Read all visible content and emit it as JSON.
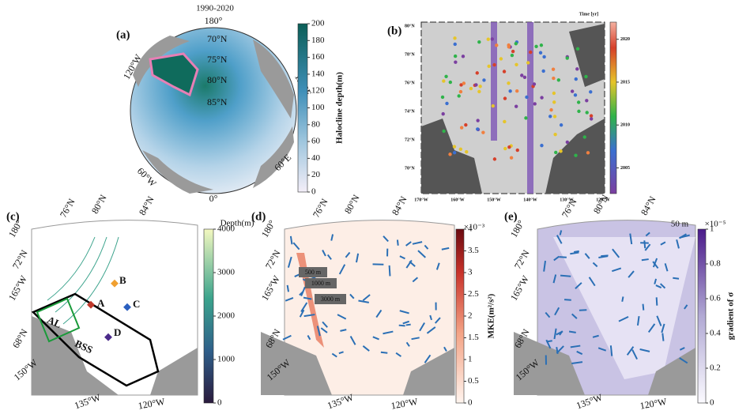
{
  "panels": [
    {
      "label": "(a)",
      "title": "1990-2020",
      "geo_labels": [
        "180°",
        "70°N",
        "75°N",
        "80°N",
        "85°N",
        "120°W",
        "120°E",
        "60°W",
        "60°E",
        "0°"
      ],
      "colorbar": {
        "title": "Halocline depth(m)",
        "range": [
          0,
          200
        ],
        "ticks": [
          0,
          20,
          40,
          60,
          80,
          100,
          120,
          140,
          160,
          180,
          200
        ]
      }
    },
    {
      "label": "(b)",
      "lat_labels": [
        "80°N",
        "78°N",
        "76°N",
        "74°N",
        "72°N",
        "70°N"
      ],
      "lon_labels": [
        "170°W",
        "160°W",
        "150°W",
        "140°W",
        "130°W",
        "120°W"
      ],
      "colorbar": {
        "title": "Time [yr]",
        "range": [
          2002,
          2022
        ],
        "ticks": [
          2005,
          2010,
          2015,
          2020
        ]
      }
    },
    {
      "label": "(c)",
      "geo_labels": [
        "76°N",
        "80°N",
        "84°N",
        "72°N",
        "68°N",
        "180°",
        "165°W",
        "150°W",
        "135°W",
        "120°W"
      ],
      "markers": [
        "A",
        "B",
        "C",
        "D"
      ],
      "regions": [
        "AL",
        "BSS"
      ],
      "colorbar": {
        "title": "Depth(m)",
        "range": [
          0,
          4000
        ],
        "ticks": [
          0,
          1000,
          2000,
          3000,
          4000
        ]
      }
    },
    {
      "label": "(d)",
      "geo_labels": [
        "76°N",
        "80°N",
        "84°N",
        "72°N",
        "68°N",
        "180°",
        "165°W",
        "150°W",
        "135°W",
        "120°W"
      ],
      "contours": [
        "500 m",
        "1000 m",
        "3000 m"
      ],
      "colorbar": {
        "title": "MKE(m²/s²)",
        "multiplier": "×10⁻³",
        "range": [
          0,
          4
        ],
        "ticks": [
          0,
          0.5,
          1,
          1.5,
          2,
          2.5,
          3,
          3.5,
          4
        ]
      }
    },
    {
      "label": "(e)",
      "depth": "50 m",
      "geo_labels": [
        "76°N",
        "80°N",
        "84°N",
        "72°N",
        "68°N",
        "180°",
        "165°W",
        "150°W",
        "135°W",
        "120°W"
      ],
      "colorbar": {
        "title": "gradient of σ",
        "multiplier": "×10⁻⁵",
        "range": [
          0,
          1
        ],
        "ticks": [
          0,
          0.2,
          0.4,
          0.6,
          0.8,
          1
        ]
      }
    }
  ]
}
